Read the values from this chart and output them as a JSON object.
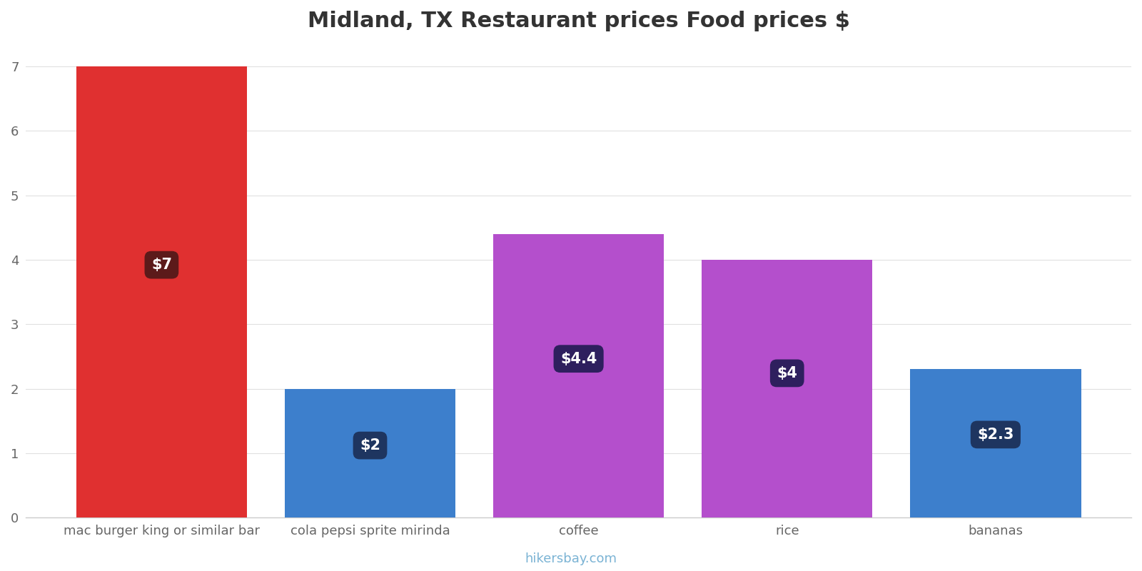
{
  "categories": [
    "mac burger king or similar bar",
    "cola pepsi sprite mirinda",
    "coffee",
    "rice",
    "bananas"
  ],
  "values": [
    7.0,
    2.0,
    4.4,
    4.0,
    2.3
  ],
  "bar_colors": [
    "#e03030",
    "#3d7fcc",
    "#b44fcc",
    "#b44fcc",
    "#3d7fcc"
  ],
  "label_bg_colors": [
    "#5c1a1a",
    "#1e3560",
    "#2e1f5e",
    "#2e1f5e",
    "#1e3560"
  ],
  "labels": [
    "$7",
    "$2",
    "$4.4",
    "$4",
    "$2.3"
  ],
  "title": "Midland, TX Restaurant prices Food prices $",
  "title_fontsize": 22,
  "tick_fontsize": 13,
  "ylim": [
    0,
    7.3
  ],
  "yticks": [
    0,
    1,
    2,
    3,
    4,
    5,
    6,
    7
  ],
  "bar_width": 0.82,
  "footer": "hikersbay.com",
  "footer_color": "#7ab3d4",
  "background_color": "#ffffff",
  "grid_color": "#e0e0e0",
  "label_fontsize": 15
}
